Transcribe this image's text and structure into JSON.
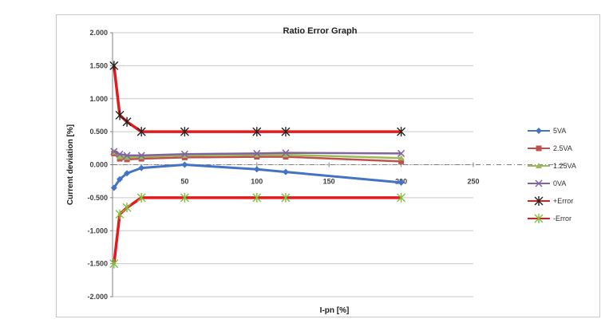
{
  "chart_data": {
    "type": "line",
    "title": "Ratio Error Graph",
    "xlabel": "I-pn [%]",
    "ylabel": "Current deviation [%]",
    "xlim": [
      0,
      250
    ],
    "ylim": [
      -2.0,
      2.0
    ],
    "x_ticks": [
      50,
      100,
      150,
      200,
      250
    ],
    "x_tick_labels": [
      "50",
      "100",
      "150",
      "200",
      "250"
    ],
    "y_ticks": [
      2.0,
      1.5,
      1.0,
      0.5,
      0.0,
      -0.5,
      -1.0,
      -1.5,
      -2.0
    ],
    "y_tick_labels": [
      "2.000",
      "1.500",
      "1.000",
      "0.500",
      "0.000",
      "-0.500",
      "-1.000",
      "-1.500",
      "-2.000"
    ],
    "grid": true,
    "legend_position": "right",
    "series": [
      {
        "name": "5VA",
        "color": "#4472c4",
        "marker": "diamond",
        "x": [
          1,
          5,
          10,
          20,
          50,
          100,
          120,
          200
        ],
        "y": [
          -0.35,
          -0.22,
          -0.13,
          -0.05,
          0.0,
          -0.07,
          -0.11,
          -0.27
        ]
      },
      {
        "name": "2.5VA",
        "color": "#c0504d",
        "marker": "square",
        "x": [
          1,
          5,
          10,
          20,
          50,
          100,
          120,
          200
        ],
        "y": [
          0.17,
          0.09,
          0.08,
          0.09,
          0.11,
          0.12,
          0.12,
          0.05
        ]
      },
      {
        "name": "1.25VA",
        "color": "#9bbb59",
        "marker": "triangle",
        "x": [
          1,
          5,
          10,
          20,
          50,
          100,
          120,
          200
        ],
        "y": [
          0.19,
          0.12,
          0.11,
          0.12,
          0.14,
          0.15,
          0.15,
          0.1
        ]
      },
      {
        "name": "0VA",
        "color": "#8064a2",
        "marker": "x",
        "x": [
          1,
          5,
          10,
          20,
          50,
          100,
          120,
          200
        ],
        "y": [
          0.2,
          0.16,
          0.14,
          0.14,
          0.16,
          0.17,
          0.18,
          0.17
        ]
      },
      {
        "name": "+Error",
        "color": "#e31a1c",
        "marker": "star",
        "x": [
          1,
          5,
          10,
          20,
          50,
          100,
          120,
          200
        ],
        "y": [
          1.5,
          0.75,
          0.65,
          0.5,
          0.5,
          0.5,
          0.5,
          0.5
        ]
      },
      {
        "name": "-Error",
        "color": "#e31a1c",
        "marker": "star-green",
        "x": [
          1,
          5,
          10,
          20,
          50,
          100,
          120,
          200
        ],
        "y": [
          -1.5,
          -0.75,
          -0.65,
          -0.5,
          -0.5,
          -0.5,
          -0.5,
          -0.5
        ]
      }
    ]
  }
}
